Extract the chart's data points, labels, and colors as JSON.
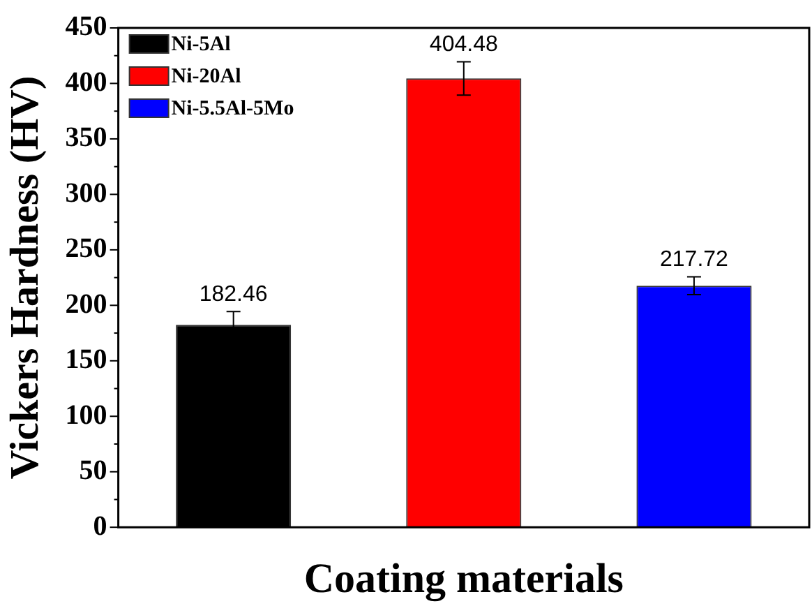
{
  "chart_data": {
    "type": "bar",
    "xlabel": "Coating materials",
    "ylabel": "Vickers Hardness (HV)",
    "categories": [
      null,
      null,
      null
    ],
    "series": [
      {
        "name": "Ni-5Al",
        "color": "#000000",
        "values": [
          182.46,
          null,
          null
        ],
        "errors": [
          12,
          null,
          null
        ]
      },
      {
        "name": "Ni-20Al",
        "color": "#ff0000",
        "values": [
          null,
          404.48,
          null
        ],
        "errors": [
          null,
          15,
          null
        ]
      },
      {
        "name": "Ni-5.5Al-5Mo",
        "color": "#0000ff",
        "values": [
          null,
          null,
          217.72
        ],
        "errors": [
          null,
          null,
          8
        ]
      }
    ],
    "ylim": [
      0,
      450
    ],
    "yticks": [
      0,
      {
        "value": 25,
        "label": null
      },
      50,
      {
        "value": 75,
        "label": null
      },
      100,
      {
        "value": 125,
        "label": null
      },
      150,
      {
        "value": 175,
        "label": null
      },
      200,
      {
        "value": 225,
        "label": null
      },
      250,
      {
        "value": 275,
        "label": null
      },
      300,
      {
        "value": 325,
        "label": null
      },
      350,
      {
        "value": 375,
        "label": null
      },
      400,
      {
        "value": 425,
        "label": null
      },
      450
    ],
    "data_labels": true,
    "stacked": true,
    "legend": "top left",
    "grid": false
  }
}
